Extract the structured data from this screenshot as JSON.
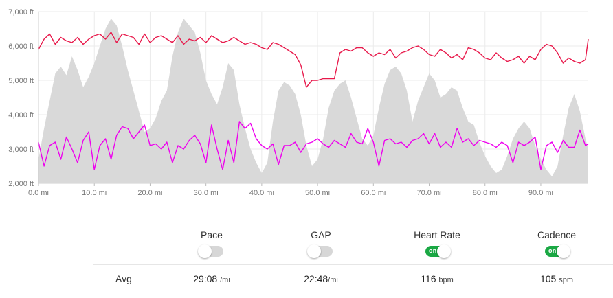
{
  "chart_data": {
    "type": "line",
    "xlabel": "",
    "ylabel": "",
    "xlim": [
      0,
      98.5
    ],
    "ylim": [
      2000,
      7000
    ],
    "x_ticks": [
      "0.0 mi",
      "10.0 mi",
      "20.0 mi",
      "30.0 mi",
      "40.0 mi",
      "50.0 mi",
      "60.0 mi",
      "70.0 mi",
      "80.0 mi",
      "90.0 mi"
    ],
    "y_ticks": [
      "2,000 ft",
      "3,000 ft",
      "4,000 ft",
      "5,000 ft",
      "6,000 ft",
      "7,000 ft"
    ],
    "grid": true,
    "series": [
      {
        "type": "area",
        "color": "#d9d9d9",
        "x": [
          0,
          1,
          2,
          3,
          4,
          5,
          6,
          7,
          8,
          9,
          10,
          11,
          12,
          13,
          14,
          15,
          16,
          17,
          18,
          19,
          20,
          21,
          22,
          23,
          24,
          25,
          26,
          27,
          28,
          29,
          30,
          31,
          32,
          33,
          34,
          35,
          36,
          37,
          38,
          39,
          40,
          41,
          42,
          43,
          44,
          45,
          46,
          47,
          48,
          49,
          50,
          51,
          52,
          53,
          54,
          55,
          56,
          57,
          58,
          59,
          60,
          61,
          62,
          63,
          64,
          65,
          66,
          67,
          68,
          69,
          70,
          71,
          72,
          73,
          74,
          75,
          76,
          77,
          78,
          79,
          80,
          81,
          82,
          83,
          84,
          85,
          86,
          87,
          88,
          89,
          90,
          91,
          92,
          93,
          94,
          95,
          96,
          97,
          98,
          98.5
        ],
        "y": [
          2700,
          3600,
          4400,
          5200,
          5400,
          5150,
          5700,
          5300,
          4800,
          5100,
          5500,
          6000,
          6500,
          6800,
          6600,
          6000,
          5300,
          4700,
          4100,
          3500,
          3600,
          3900,
          4400,
          4700,
          5700,
          6400,
          6800,
          6600,
          6400,
          5800,
          5000,
          4600,
          4300,
          4800,
          5500,
          5300,
          4300,
          3600,
          3000,
          2600,
          2300,
          2600,
          3800,
          4700,
          4950,
          4850,
          4600,
          4000,
          3100,
          2500,
          2700,
          3300,
          4200,
          4700,
          4900,
          5000,
          4500,
          3900,
          3300,
          3100,
          3400,
          4200,
          4900,
          5300,
          5400,
          5200,
          4700,
          3800,
          4400,
          4800,
          5200,
          5000,
          4500,
          4600,
          4800,
          4700,
          4200,
          3800,
          3700,
          3200,
          2800,
          2500,
          2300,
          2400,
          2800,
          3300,
          3600,
          3800,
          3600,
          3100,
          2700,
          2400,
          2200,
          2500,
          3400,
          4200,
          4600,
          4100,
          3300,
          3000
        ]
      },
      {
        "type": "line",
        "color": "#e8194b",
        "x": [
          0,
          1,
          2,
          3,
          4,
          5,
          6,
          7,
          8,
          9,
          10,
          11,
          12,
          13,
          14,
          15,
          16,
          17,
          18,
          19,
          20,
          21,
          22,
          23,
          24,
          25,
          26,
          27,
          28,
          29,
          30,
          31,
          32,
          33,
          34,
          35,
          36,
          37,
          38,
          39,
          40,
          41,
          42,
          43,
          44,
          45,
          46,
          47,
          48,
          49,
          50,
          51,
          52,
          53,
          54,
          55,
          56,
          57,
          58,
          59,
          60,
          61,
          62,
          63,
          64,
          65,
          66,
          67,
          68,
          69,
          70,
          71,
          72,
          73,
          74,
          75,
          76,
          77,
          78,
          79,
          80,
          81,
          82,
          83,
          84,
          85,
          86,
          87,
          88,
          89,
          90,
          91,
          92,
          93,
          94,
          95,
          96,
          97,
          98,
          98.5
        ],
        "y": [
          5900,
          6200,
          6350,
          6050,
          6250,
          6150,
          6100,
          6250,
          6050,
          6200,
          6300,
          6350,
          6200,
          6400,
          6100,
          6350,
          6300,
          6250,
          6050,
          6350,
          6100,
          6250,
          6300,
          6200,
          6100,
          6300,
          6050,
          6200,
          6150,
          6250,
          6100,
          6300,
          6200,
          6100,
          6150,
          6250,
          6150,
          6050,
          6100,
          6050,
          5950,
          5900,
          6100,
          6050,
          5950,
          5850,
          5750,
          5450,
          4800,
          5000,
          5000,
          5050,
          5050,
          5050,
          5800,
          5900,
          5850,
          5950,
          5950,
          5800,
          5700,
          5800,
          5750,
          5900,
          5650,
          5800,
          5850,
          5950,
          6000,
          5900,
          5750,
          5700,
          5900,
          5800,
          5650,
          5750,
          5600,
          5950,
          5900,
          5800,
          5650,
          5600,
          5800,
          5650,
          5550,
          5600,
          5700,
          5500,
          5700,
          5600,
          5900,
          6050,
          6000,
          5800,
          5500,
          5650,
          5550,
          5500,
          5600,
          6200
        ]
      },
      {
        "type": "line",
        "color": "#ee00ee",
        "x": [
          0,
          1,
          2,
          3,
          4,
          5,
          6,
          7,
          8,
          9,
          10,
          11,
          12,
          13,
          14,
          15,
          16,
          17,
          18,
          19,
          20,
          21,
          22,
          23,
          24,
          25,
          26,
          27,
          28,
          29,
          30,
          31,
          32,
          33,
          34,
          35,
          36,
          37,
          38,
          39,
          40,
          41,
          42,
          43,
          44,
          45,
          46,
          47,
          48,
          49,
          50,
          51,
          52,
          53,
          54,
          55,
          56,
          57,
          58,
          59,
          60,
          61,
          62,
          63,
          64,
          65,
          66,
          67,
          68,
          69,
          70,
          71,
          72,
          73,
          74,
          75,
          76,
          77,
          78,
          79,
          80,
          81,
          82,
          83,
          84,
          85,
          86,
          87,
          88,
          89,
          90,
          91,
          92,
          93,
          94,
          95,
          96,
          97,
          98,
          98.5
        ],
        "y": [
          3200,
          2500,
          3100,
          3200,
          2700,
          3350,
          3000,
          2600,
          3250,
          3500,
          2400,
          3100,
          3300,
          2700,
          3400,
          3650,
          3600,
          3300,
          3500,
          3700,
          3100,
          3150,
          3000,
          3200,
          2600,
          3100,
          3000,
          3250,
          3400,
          3150,
          2600,
          3700,
          3000,
          2400,
          3250,
          2600,
          3800,
          3600,
          3750,
          3300,
          3100,
          3000,
          3150,
          2550,
          3100,
          3100,
          3200,
          2900,
          3150,
          3200,
          3300,
          3150,
          3050,
          3250,
          3150,
          3050,
          3450,
          3200,
          3150,
          3600,
          3200,
          2500,
          3250,
          3300,
          3150,
          3200,
          3050,
          3250,
          3300,
          3450,
          3150,
          3450,
          3050,
          3200,
          3050,
          3600,
          3200,
          3300,
          3100,
          3250,
          3200,
          3150,
          3050,
          3200,
          3100,
          2600,
          3200,
          3100,
          3200,
          3350,
          2400,
          3100,
          3200,
          2900,
          3250,
          3050,
          3050,
          3550,
          3100,
          3150
        ]
      }
    ]
  },
  "stats": {
    "columns": [
      {
        "label": "Pace",
        "toggle": "off",
        "toggle_text": "",
        "value": "29:08",
        "unit": "/mi"
      },
      {
        "label": "GAP",
        "toggle": "off",
        "toggle_text": "",
        "value": "22:48",
        "unit": "/mi"
      },
      {
        "label": "Heart Rate",
        "toggle": "on",
        "toggle_text": "on",
        "value": "116",
        "unit": "bpm"
      },
      {
        "label": "Cadence",
        "toggle": "on",
        "toggle_text": "on",
        "value": "105",
        "unit": "spm"
      }
    ],
    "avg_label": "Avg"
  },
  "colors": {
    "elevation": "#d9d9d9",
    "heart_rate": "#e8194b",
    "cadence": "#ee00ee",
    "toggle_on": "#1aa844",
    "toggle_off": "#d7d7d7"
  }
}
